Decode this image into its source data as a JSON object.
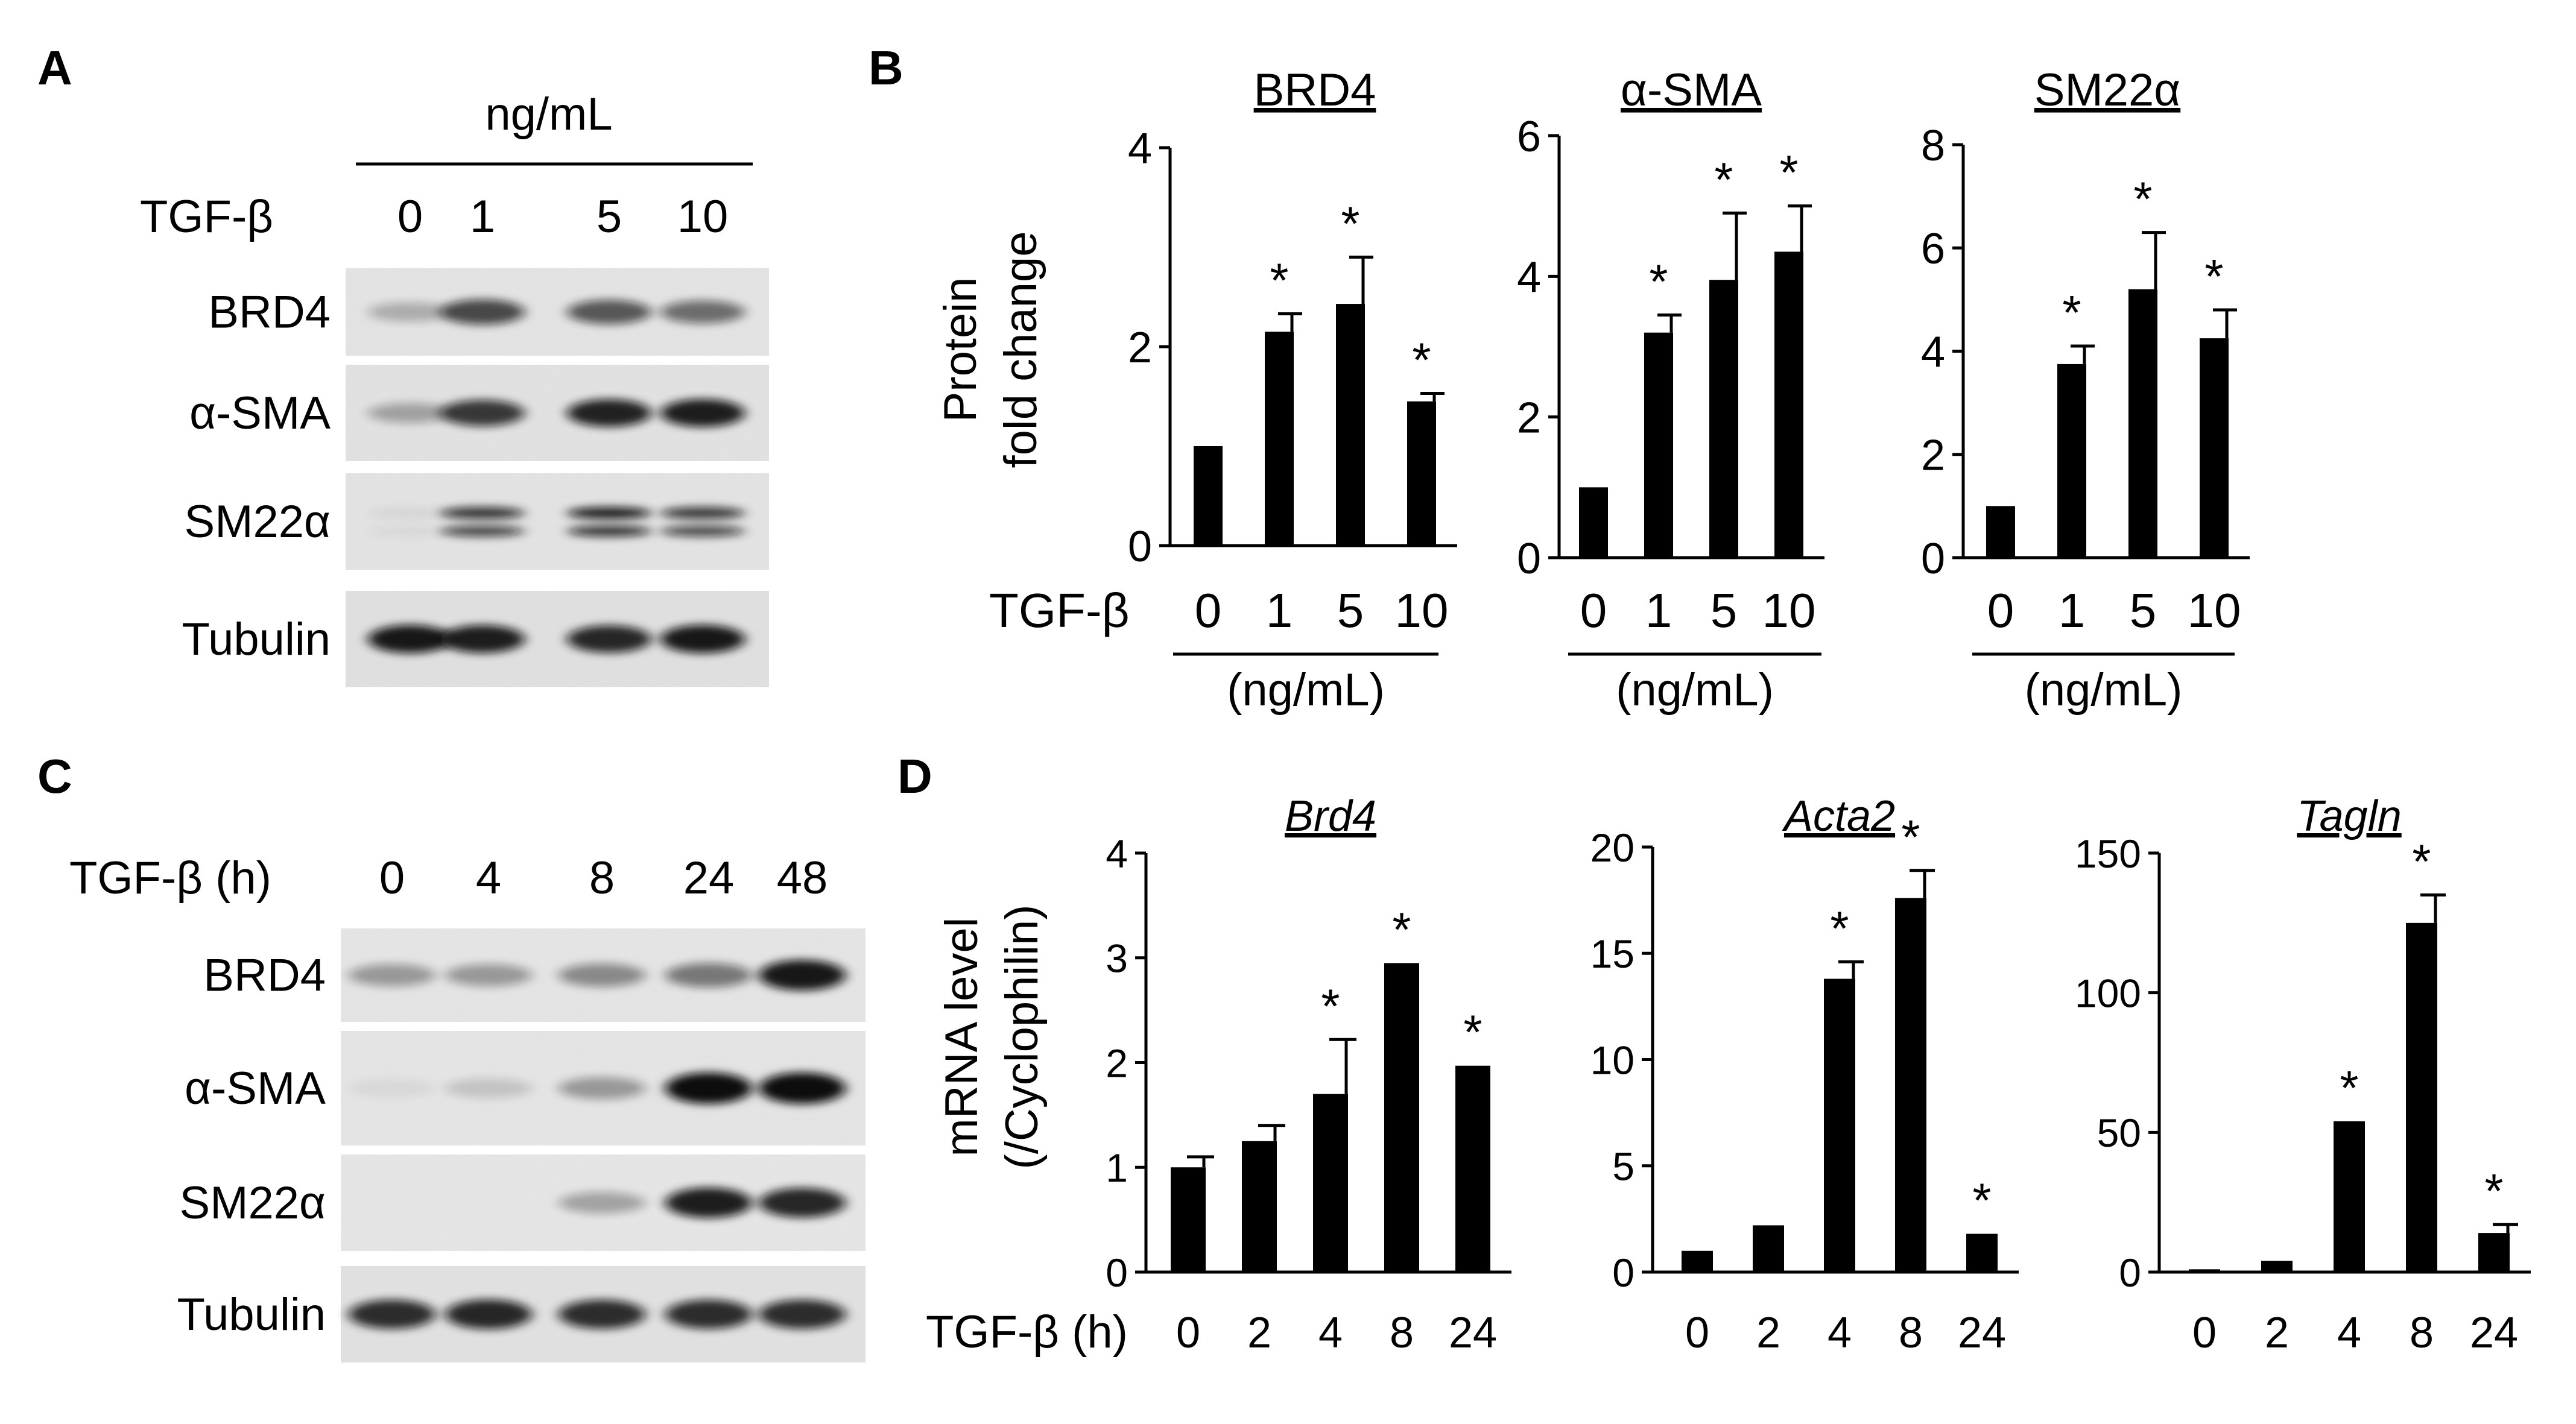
{
  "panels": {
    "A": {
      "letter": "A",
      "unit_header": "ng/mL",
      "treatment_label": "TGF-β",
      "lanes": [
        "0",
        "1",
        "5",
        "10"
      ],
      "blots": [
        {
          "label": "BRD4",
          "bands": [
            0.25,
            0.72,
            0.65,
            0.55
          ]
        },
        {
          "label": "α-SMA",
          "bands": [
            0.3,
            0.8,
            0.9,
            0.92
          ]
        },
        {
          "label": "SM22α",
          "bands": [
            0.05,
            0.82,
            0.92,
            0.8
          ]
        },
        {
          "label": "Tubulin",
          "bands": [
            0.95,
            0.92,
            0.88,
            0.95
          ]
        }
      ]
    },
    "B": {
      "letter": "B",
      "ylabel": [
        "Protein",
        "fold change"
      ],
      "treatment_label": "TGF-β",
      "unit": "(ng/mL)"
    },
    "C": {
      "letter": "C",
      "treatment_label": "TGF-β (h)",
      "lanes": [
        "0",
        "4",
        "8",
        "24",
        "48"
      ],
      "blots": [
        {
          "label": "BRD4",
          "bands": [
            0.35,
            0.35,
            0.42,
            0.5,
            0.95
          ]
        },
        {
          "label": "α-SMA",
          "bands": [
            0.05,
            0.15,
            0.35,
            1.0,
            1.0
          ]
        },
        {
          "label": "SM22α",
          "bands": [
            0.0,
            0.0,
            0.3,
            0.92,
            0.88
          ]
        },
        {
          "label": "Tubulin",
          "bands": [
            0.85,
            0.88,
            0.85,
            0.85,
            0.85
          ]
        }
      ]
    },
    "D": {
      "letter": "D",
      "ylabel": [
        "mRNA level",
        "(/Cyclophilin)"
      ],
      "treatment_label": "TGF-β (h)"
    }
  },
  "chart_data": [
    {
      "type": "bar",
      "panel": "B",
      "title": "BRD4",
      "categories": [
        "0",
        "1",
        "5",
        "10"
      ],
      "values": [
        1.0,
        2.15,
        2.43,
        1.45
      ],
      "errors": [
        0,
        0.18,
        0.47,
        0.08
      ],
      "significance": [
        "",
        "*",
        "*",
        "*"
      ],
      "ylim": [
        0,
        4
      ],
      "yticks": [
        0,
        2,
        4
      ]
    },
    {
      "type": "bar",
      "panel": "B",
      "title": "α-SMA",
      "categories": [
        "0",
        "1",
        "5",
        "10"
      ],
      "values": [
        1.0,
        3.2,
        3.95,
        4.35
      ],
      "errors": [
        0,
        0.25,
        0.95,
        0.65
      ],
      "significance": [
        "",
        "*",
        "*",
        "*"
      ],
      "ylim": [
        0,
        6
      ],
      "yticks": [
        0,
        2,
        4,
        6
      ]
    },
    {
      "type": "bar",
      "panel": "B",
      "title": "SM22α",
      "categories": [
        "0",
        "1",
        "5",
        "10"
      ],
      "values": [
        1.0,
        3.75,
        5.2,
        4.25
      ],
      "errors": [
        0,
        0.35,
        1.1,
        0.55
      ],
      "significance": [
        "",
        "*",
        "*",
        "*"
      ],
      "ylim": [
        0,
        8
      ],
      "yticks": [
        0,
        2,
        4,
        6,
        8
      ]
    },
    {
      "type": "bar",
      "panel": "D",
      "title": "Brd4",
      "categories": [
        "0",
        "2",
        "4",
        "8",
        "24"
      ],
      "values": [
        1.0,
        1.25,
        1.7,
        2.95,
        1.97
      ],
      "errors": [
        0.1,
        0.15,
        0.52,
        0,
        0
      ],
      "significance": [
        "",
        "",
        "*",
        "*",
        "*"
      ],
      "ylim": [
        0,
        4
      ],
      "yticks": [
        0,
        1,
        2,
        3,
        4
      ]
    },
    {
      "type": "bar",
      "panel": "D",
      "title": "Acta2",
      "categories": [
        "0",
        "2",
        "4",
        "8",
        "24"
      ],
      "values": [
        1.0,
        2.2,
        13.8,
        17.6,
        1.8
      ],
      "errors": [
        0,
        0,
        0.8,
        1.3,
        0
      ],
      "significance": [
        "",
        "",
        "*",
        "*",
        "*"
      ],
      "ylim": [
        0,
        20
      ],
      "yticks": [
        0,
        5,
        10,
        15,
        20
      ]
    },
    {
      "type": "bar",
      "panel": "D",
      "title": "Tagln",
      "categories": [
        "0",
        "2",
        "4",
        "8",
        "24"
      ],
      "values": [
        1.0,
        4.0,
        54,
        125,
        14
      ],
      "errors": [
        0,
        0,
        0,
        10,
        3
      ],
      "significance": [
        "",
        "",
        "*",
        "*",
        "*"
      ],
      "ylim": [
        0,
        150
      ],
      "yticks": [
        0,
        50,
        100,
        150
      ]
    }
  ]
}
